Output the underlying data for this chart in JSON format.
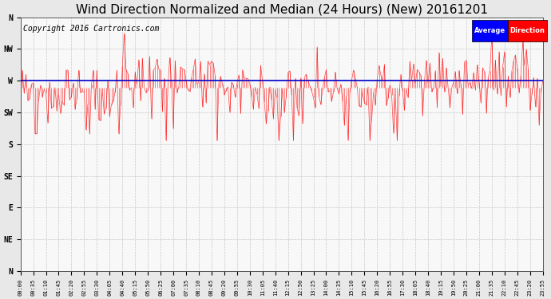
{
  "title": "Wind Direction Normalized and Median (24 Hours) (New) 20161201",
  "copyright": "Copyright 2016 Cartronics.com",
  "yticks_values": [
    360,
    315,
    270,
    225,
    180,
    135,
    90,
    45,
    0
  ],
  "yticks_labels": [
    "N",
    "NW",
    "W",
    "SW",
    "S",
    "SE",
    "E",
    "NE",
    "N"
  ],
  "ylim": [
    0,
    360
  ],
  "average_direction": 270,
  "bg_color": "#e8e8e8",
  "plot_bg_color": "#f8f8f8",
  "grid_color": "#bbbbbb",
  "red_color": "#ff0000",
  "blue_color": "#0000cc",
  "title_fontsize": 11,
  "copyright_fontsize": 7,
  "tick_fontsize": 7,
  "n_points": 288,
  "figwidth": 6.9,
  "figheight": 3.75,
  "dpi": 100
}
